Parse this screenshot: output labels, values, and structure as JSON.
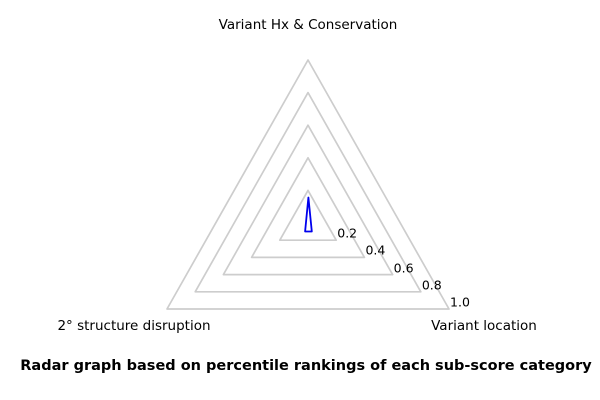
{
  "figure": {
    "background": "#ffffff",
    "caption": "Radar graph based on percentile rankings of each sub-score category"
  },
  "axis_labels": {
    "top": "Variant Hx & Conservation",
    "bottom_right": "Variant location",
    "bottom_left": "2° structure disruption"
  },
  "chart_data": {
    "type": "radar",
    "shape": "triangle",
    "title": "Radar graph based on percentile rankings of each sub-score category",
    "categories": [
      "Variant Hx & Conservation",
      "Variant location",
      "2° structure disruption"
    ],
    "series": [
      {
        "name": "percentile rankings",
        "values": [
          0.15,
          0.05,
          0.05
        ]
      }
    ],
    "rlim": [
      0,
      1.0
    ],
    "radial_ticks": [
      0.2,
      0.4,
      0.6,
      0.8,
      1.0
    ],
    "radial_tick_labels": [
      "0.2",
      "0.4",
      "0.6",
      "0.8",
      "1.0"
    ],
    "grid": true,
    "legend": false,
    "grid_color": "#cdcdcd",
    "series_color": "#0000ee",
    "text_color": "#000000"
  }
}
